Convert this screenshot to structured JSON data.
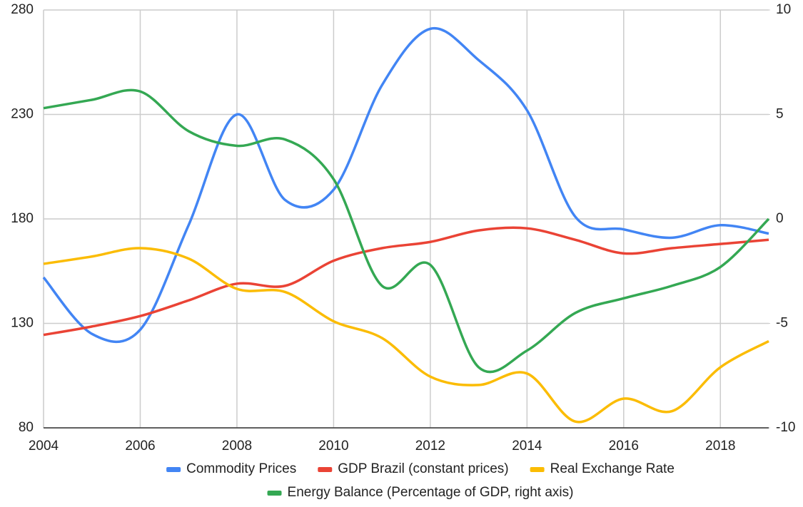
{
  "chart_data": {
    "type": "line",
    "x": [
      2004,
      2005,
      2006,
      2007,
      2008,
      2009,
      2010,
      2011,
      2012,
      2013,
      2014,
      2015,
      2016,
      2017,
      2018,
      2019
    ],
    "xlim": [
      2004,
      2019
    ],
    "xticks": [
      2004,
      2006,
      2008,
      2010,
      2012,
      2014,
      2016,
      2018
    ],
    "ylim": [
      80,
      280
    ],
    "yticks": [
      80,
      130,
      180,
      230,
      280
    ],
    "y2lim": [
      -10,
      10
    ],
    "y2ticks": [
      -10,
      -5,
      0,
      5,
      10
    ],
    "grid": true,
    "legend": "bottom",
    "series": [
      {
        "name": "Commodity Prices",
        "color": "#4285f4",
        "values": [
          152,
          125,
          127,
          177,
          230,
          189,
          194,
          244,
          271,
          256,
          232,
          181,
          175,
          171,
          177,
          173
        ]
      },
      {
        "name": "GDP Brazil (constant prices)",
        "color": "#ea4335",
        "values": [
          124.5,
          128.5,
          133.5,
          141,
          149,
          148,
          160,
          166,
          169,
          174.5,
          175.5,
          170,
          163.5,
          166,
          168,
          170
        ]
      },
      {
        "name": "Real Exchange Rate",
        "color": "#fbbc04",
        "values": [
          158.5,
          162,
          166,
          161,
          146.5,
          145,
          131,
          123,
          104.5,
          100.5,
          106,
          83,
          94,
          88,
          109,
          121.5
        ]
      },
      {
        "name": "Energy Balance (Percentage of GDP, right axis)",
        "color": "#34a853",
        "axis": "y2",
        "values": [
          5.3,
          5.7,
          6.1,
          4.2,
          3.5,
          3.8,
          1.9,
          -3.2,
          -2.2,
          -7.1,
          -6.3,
          -4.5,
          -3.8,
          -3.2,
          -2.3,
          0
        ]
      }
    ]
  }
}
